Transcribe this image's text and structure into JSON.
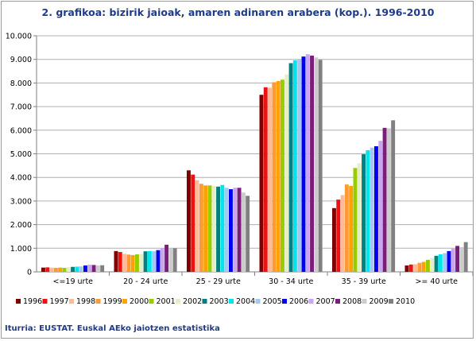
{
  "title": "2. grafikoa: bizirik jaioak, amaren adinaren arabera (kop.). 1996-2010",
  "source": "Iturria: EUSTAT. Euskal AEko jaiotzen estatistika",
  "chart_data": {
    "type": "bar",
    "title": "2. grafikoa: bizirik jaioak, amaren adinaren arabera (kop.). 1996-2010",
    "xlabel": "",
    "ylabel": "",
    "ylim": [
      0,
      10000
    ],
    "yticks": [
      0,
      1000,
      2000,
      3000,
      4000,
      5000,
      6000,
      7000,
      8000,
      9000,
      10000
    ],
    "ytick_labels": [
      "0",
      "1.000",
      "2.000",
      "3.000",
      "4.000",
      "5.000",
      "6.000",
      "7.000",
      "8.000",
      "9.000",
      "10.000"
    ],
    "grid": true,
    "legend_position": "bottom",
    "categories": [
      "<=19 urte",
      "20 - 24 urte",
      "25 - 29 urte",
      "30 - 34 urte",
      "35 - 39 urte",
      ">= 40 urte"
    ],
    "series": [
      {
        "name": "1996",
        "color": "#800000",
        "values": [
          180,
          880,
          4300,
          7500,
          2700,
          270
        ]
      },
      {
        "name": "1997",
        "color": "#ee1111",
        "values": [
          190,
          840,
          4120,
          7820,
          3060,
          310
        ]
      },
      {
        "name": "1998",
        "color": "#ffbb99",
        "values": [
          180,
          760,
          3880,
          7800,
          3250,
          320
        ]
      },
      {
        "name": "1999",
        "color": "#ff9933",
        "values": [
          170,
          730,
          3730,
          8030,
          3700,
          380
        ]
      },
      {
        "name": "2000",
        "color": "#ffa200",
        "values": [
          180,
          710,
          3660,
          8080,
          3640,
          420
        ]
      },
      {
        "name": "2001",
        "color": "#99cc00",
        "values": [
          170,
          740,
          3660,
          8140,
          4400,
          510
        ]
      },
      {
        "name": "2002",
        "color": "#e6eec8",
        "values": [
          200,
          760,
          3640,
          8360,
          4600,
          590
        ]
      },
      {
        "name": "2003",
        "color": "#008080",
        "values": [
          210,
          870,
          3610,
          8840,
          4980,
          680
        ]
      },
      {
        "name": "2004",
        "color": "#00e5ee",
        "values": [
          220,
          880,
          3680,
          8960,
          5150,
          740
        ]
      },
      {
        "name": "2005",
        "color": "#a6c8f0",
        "values": [
          230,
          870,
          3560,
          9000,
          5260,
          790
        ]
      },
      {
        "name": "2006",
        "color": "#0000ee",
        "values": [
          270,
          920,
          3500,
          9120,
          5320,
          880
        ]
      },
      {
        "name": "2007",
        "color": "#c9a7f0",
        "values": [
          300,
          1010,
          3560,
          9220,
          5550,
          980
        ]
      },
      {
        "name": "2008",
        "color": "#7b1e7b",
        "values": [
          290,
          1150,
          3560,
          9160,
          6100,
          1100
        ]
      },
      {
        "name": "2009",
        "color": "#cccccc",
        "values": [
          270,
          1000,
          3360,
          9080,
          6080,
          1050
        ]
      },
      {
        "name": "2010",
        "color": "#808080",
        "values": [
          280,
          1000,
          3220,
          8980,
          6420,
          1260
        ]
      }
    ]
  }
}
